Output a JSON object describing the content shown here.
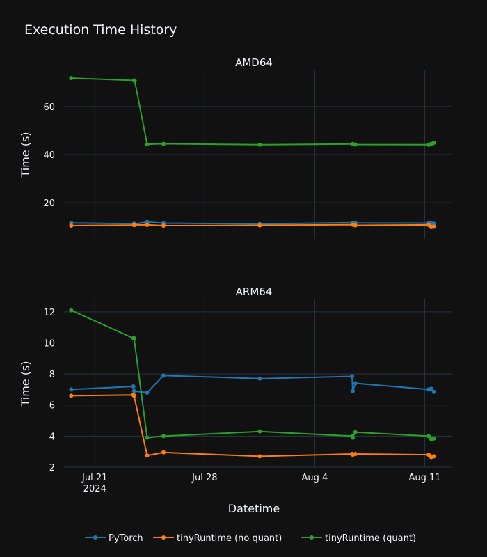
{
  "chart_data": {
    "type": "line",
    "title": "Execution Time History",
    "xlabel": "Datetime",
    "ylabel": "Time (s)",
    "x_ticks": [
      {
        "date": "2024-07-21",
        "label": "Jul 21",
        "sublabel": "2024"
      },
      {
        "date": "2024-07-28",
        "label": "Jul 28",
        "sublabel": ""
      },
      {
        "date": "2024-08-04",
        "label": "Aug 4",
        "sublabel": ""
      },
      {
        "date": "2024-08-11",
        "label": "Aug 11",
        "sublabel": ""
      }
    ],
    "xlim": [
      "2024-07-19 01:00",
      "2024-08-12 18:00"
    ],
    "legend_position": "bottom-center",
    "grid": true,
    "series_styles": [
      {
        "name": "PyTorch",
        "color": "#1f77b4"
      },
      {
        "name": "tinyRuntime (no quant)",
        "color": "#ff7f0e"
      },
      {
        "name": "tinyRuntime (quant)",
        "color": "#2ca02c"
      }
    ],
    "panels": [
      {
        "subtitle": "AMD64",
        "ylim": [
          5,
          75
        ],
        "yticks": [
          20,
          40,
          60
        ],
        "series": [
          {
            "name": "PyTorch",
            "points": [
              [
                "2024-07-19 12:00",
                11.6
              ],
              [
                "2024-07-23 12:00",
                11.3
              ],
              [
                "2024-07-23 13:00",
                11.2
              ],
              [
                "2024-07-24 08:00",
                12.0
              ],
              [
                "2024-07-25 09:00",
                11.5
              ],
              [
                "2024-07-31 12:00",
                11.2
              ],
              [
                "2024-08-06 10:00",
                11.7
              ],
              [
                "2024-08-06 14:00",
                11.6
              ],
              [
                "2024-08-11 06:00",
                11.5
              ],
              [
                "2024-08-11 10:00",
                11.4
              ],
              [
                "2024-08-11 14:00",
                11.3
              ]
            ]
          },
          {
            "name": "tinyRuntime (no quant)",
            "points": [
              [
                "2024-07-19 12:00",
                10.5
              ],
              [
                "2024-07-23 12:00",
                10.7
              ],
              [
                "2024-07-23 13:00",
                10.8
              ],
              [
                "2024-07-24 08:00",
                10.8
              ],
              [
                "2024-07-25 09:00",
                10.5
              ],
              [
                "2024-07-31 12:00",
                10.6
              ],
              [
                "2024-08-06 10:00",
                10.9
              ],
              [
                "2024-08-06 14:00",
                10.6
              ],
              [
                "2024-08-11 06:00",
                10.8
              ],
              [
                "2024-08-11 10:00",
                9.9
              ],
              [
                "2024-08-11 14:00",
                10.1
              ]
            ]
          },
          {
            "name": "tinyRuntime (quant)",
            "points": [
              [
                "2024-07-19 12:00",
                71.8
              ],
              [
                "2024-07-23 12:00",
                70.8
              ],
              [
                "2024-07-23 13:00",
                70.7
              ],
              [
                "2024-07-24 08:00",
                44.3
              ],
              [
                "2024-07-25 09:00",
                44.5
              ],
              [
                "2024-07-31 12:00",
                44.1
              ],
              [
                "2024-08-06 10:00",
                44.4
              ],
              [
                "2024-08-06 14:00",
                44.2
              ],
              [
                "2024-08-11 06:00",
                44.1
              ],
              [
                "2024-08-11 10:00",
                44.5
              ],
              [
                "2024-08-11 14:00",
                44.9
              ]
            ]
          }
        ]
      },
      {
        "subtitle": "ARM64",
        "ylim": [
          2,
          12.8
        ],
        "yticks": [
          2,
          4,
          6,
          8,
          10,
          12
        ],
        "series": [
          {
            "name": "PyTorch",
            "points": [
              [
                "2024-07-19 12:00",
                7.0
              ],
              [
                "2024-07-23 11:00",
                7.2
              ],
              [
                "2024-07-23 12:00",
                6.9
              ],
              [
                "2024-07-24 08:00",
                6.8
              ],
              [
                "2024-07-25 09:00",
                7.9
              ],
              [
                "2024-07-31 12:00",
                7.7
              ],
              [
                "2024-08-06 09:00",
                7.85
              ],
              [
                "2024-08-06 10:00",
                6.9
              ],
              [
                "2024-08-06 14:00",
                7.4
              ],
              [
                "2024-08-11 06:00",
                7.0
              ],
              [
                "2024-08-11 10:00",
                7.05
              ],
              [
                "2024-08-11 14:00",
                6.85
              ]
            ]
          },
          {
            "name": "tinyRuntime (no quant)",
            "points": [
              [
                "2024-07-19 12:00",
                6.6
              ],
              [
                "2024-07-23 11:00",
                6.65
              ],
              [
                "2024-07-23 12:00",
                6.6
              ],
              [
                "2024-07-24 08:00",
                2.75
              ],
              [
                "2024-07-25 09:00",
                2.95
              ],
              [
                "2024-07-31 12:00",
                2.7
              ],
              [
                "2024-08-06 09:00",
                2.85
              ],
              [
                "2024-08-06 10:00",
                2.8
              ],
              [
                "2024-08-06 14:00",
                2.85
              ],
              [
                "2024-08-11 06:00",
                2.8
              ],
              [
                "2024-08-11 10:00",
                2.65
              ],
              [
                "2024-08-11 14:00",
                2.7
              ]
            ]
          },
          {
            "name": "tinyRuntime (quant)",
            "points": [
              [
                "2024-07-19 12:00",
                12.1
              ],
              [
                "2024-07-23 11:00",
                10.3
              ],
              [
                "2024-07-23 12:00",
                10.3
              ],
              [
                "2024-07-24 08:00",
                3.9
              ],
              [
                "2024-07-25 09:00",
                4.0
              ],
              [
                "2024-07-31 12:00",
                4.3
              ],
              [
                "2024-08-06 09:00",
                4.0
              ],
              [
                "2024-08-06 10:00",
                3.9
              ],
              [
                "2024-08-06 14:00",
                4.25
              ],
              [
                "2024-08-11 06:00",
                4.0
              ],
              [
                "2024-08-11 10:00",
                3.8
              ],
              [
                "2024-08-11 14:00",
                3.85
              ]
            ]
          }
        ]
      }
    ]
  }
}
